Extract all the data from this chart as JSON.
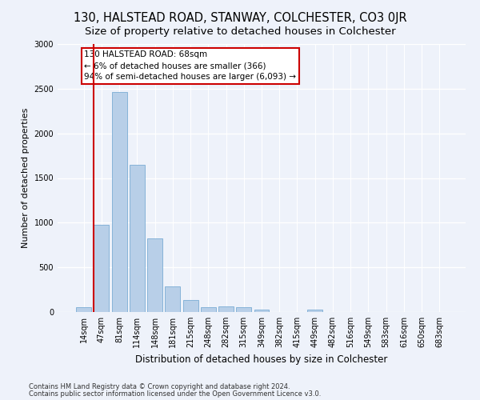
{
  "title": "130, HALSTEAD ROAD, STANWAY, COLCHESTER, CO3 0JR",
  "subtitle": "Size of property relative to detached houses in Colchester",
  "xlabel": "Distribution of detached houses by size in Colchester",
  "ylabel": "Number of detached properties",
  "categories": [
    "14sqm",
    "47sqm",
    "81sqm",
    "114sqm",
    "148sqm",
    "181sqm",
    "215sqm",
    "248sqm",
    "282sqm",
    "315sqm",
    "349sqm",
    "382sqm",
    "415sqm",
    "449sqm",
    "482sqm",
    "516sqm",
    "549sqm",
    "583sqm",
    "616sqm",
    "650sqm",
    "683sqm"
  ],
  "values": [
    55,
    975,
    2460,
    1650,
    820,
    290,
    130,
    55,
    65,
    50,
    25,
    0,
    0,
    30,
    0,
    0,
    0,
    0,
    0,
    0,
    0
  ],
  "bar_color": "#b8cfe8",
  "bar_edge_color": "#7aacd4",
  "vline_color": "#cc0000",
  "vline_x": 0.575,
  "annotation_box_text": "130 HALSTEAD ROAD: 68sqm\n← 6% of detached houses are smaller (366)\n94% of semi-detached houses are larger (6,093) →",
  "annotation_box_color": "#cc0000",
  "footnote1": "Contains HM Land Registry data © Crown copyright and database right 2024.",
  "footnote2": "Contains public sector information licensed under the Open Government Licence v3.0.",
  "ylim": [
    0,
    3000
  ],
  "background_color": "#eef2fa",
  "grid_color": "#ffffff",
  "title_fontsize": 10.5,
  "subtitle_fontsize": 9.5,
  "xlabel_fontsize": 8.5,
  "ylabel_fontsize": 8,
  "tick_fontsize": 7,
  "annot_fontsize": 7.5,
  "footnote_fontsize": 6
}
